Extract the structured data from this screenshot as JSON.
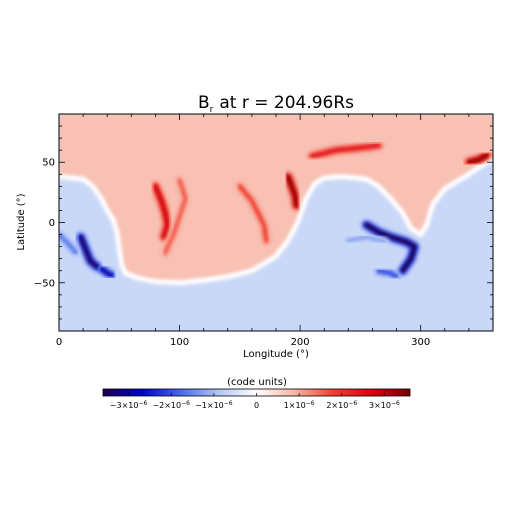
{
  "chart_data": {
    "type": "heatmap",
    "title_main": "B",
    "title_sub": "r",
    "title_rest": "at r = 204.96Rs",
    "xlabel": "Longitude (°)",
    "ylabel": "Latitude (°)",
    "xlim": [
      0,
      360
    ],
    "ylim": [
      -90,
      90
    ],
    "x_ticks": [
      0,
      100,
      200,
      300
    ],
    "y_ticks": [
      -50,
      0,
      50
    ],
    "colorbar": {
      "title": "(code units)",
      "range": [
        -3.6e-06,
        3.6e-06
      ],
      "orientation": "horizontal",
      "colormap": [
        "#1c0050",
        "#0000cc",
        "#4466ee",
        "#b0c4f4",
        "#ffffff",
        "#f7b4a4",
        "#f04030",
        "#dd0010",
        "#7a0000"
      ],
      "tick_values": [
        -3e-06,
        -2e-06,
        -1e-06,
        0,
        1e-06,
        2e-06,
        3e-06
      ],
      "tick_labels": [
        {
          "base": "−3×10",
          "exp": "−6"
        },
        {
          "base": "−2×10",
          "exp": "−6"
        },
        {
          "base": "−1×10",
          "exp": "−6"
        },
        {
          "base": "0",
          "exp": ""
        },
        {
          "base": "1×10",
          "exp": "−6"
        },
        {
          "base": "2×10",
          "exp": "−6"
        },
        {
          "base": "3×10",
          "exp": "−6"
        }
      ]
    },
    "background_levels": {
      "north_positive": 7.5e-07,
      "south_negative": -6e-07,
      "near_sheet": 0.0
    },
    "neutral_line": [
      [
        0,
        38
      ],
      [
        20,
        36
      ],
      [
        28,
        30
      ],
      [
        35,
        20
      ],
      [
        40,
        10
      ],
      [
        45,
        2
      ],
      [
        48,
        -8
      ],
      [
        50,
        -22
      ],
      [
        52,
        -35
      ],
      [
        55,
        -42
      ],
      [
        65,
        -46
      ],
      [
        80,
        -49
      ],
      [
        100,
        -50
      ],
      [
        120,
        -48
      ],
      [
        140,
        -45
      ],
      [
        160,
        -40
      ],
      [
        180,
        -28
      ],
      [
        190,
        -15
      ],
      [
        198,
        0
      ],
      [
        205,
        20
      ],
      [
        212,
        32
      ],
      [
        220,
        37
      ],
      [
        235,
        38
      ],
      [
        255,
        36
      ],
      [
        265,
        30
      ],
      [
        275,
        20
      ],
      [
        285,
        8
      ],
      [
        292,
        -5
      ],
      [
        300,
        -10
      ],
      [
        305,
        -2
      ],
      [
        310,
        15
      ],
      [
        320,
        28
      ],
      [
        330,
        34
      ],
      [
        340,
        40
      ],
      [
        350,
        47
      ],
      [
        360,
        52
      ]
    ],
    "positive_filaments": [
      {
        "points": [
          [
            80,
            30
          ],
          [
            85,
            18
          ],
          [
            88,
            8
          ],
          [
            90,
            -2
          ],
          [
            87,
            -12
          ]
        ],
        "peak": 2.8e-06
      },
      {
        "points": [
          [
            100,
            35
          ],
          [
            105,
            20
          ],
          [
            100,
            5
          ],
          [
            95,
            -10
          ],
          [
            88,
            -25
          ]
        ],
        "peak": 1.6e-06
      },
      {
        "points": [
          [
            150,
            30
          ],
          [
            160,
            18
          ],
          [
            165,
            8
          ],
          [
            170,
            -2
          ],
          [
            172,
            -15
          ]
        ],
        "peak": 1.8e-06
      },
      {
        "points": [
          [
            190,
            38
          ],
          [
            193,
            30
          ],
          [
            196,
            22
          ],
          [
            197,
            14
          ]
        ],
        "peak": 3.4e-06
      },
      {
        "points": [
          [
            210,
            55
          ],
          [
            230,
            60
          ],
          [
            250,
            62
          ],
          [
            265,
            64
          ]
        ],
        "peak": 2.4e-06
      },
      {
        "points": [
          [
            340,
            50
          ],
          [
            348,
            52
          ],
          [
            355,
            56
          ]
        ],
        "peak": 3.4e-06
      }
    ],
    "negative_filaments": [
      {
        "points": [
          [
            18,
            -12
          ],
          [
            22,
            -22
          ],
          [
            26,
            -32
          ],
          [
            32,
            -37
          ]
        ],
        "peak": -3.5e-06
      },
      {
        "points": [
          [
            35,
            -38
          ],
          [
            40,
            -42
          ],
          [
            44,
            -44
          ]
        ],
        "peak": -3e-06
      },
      {
        "points": [
          [
            255,
            -2
          ],
          [
            265,
            -8
          ],
          [
            275,
            -12
          ],
          [
            288,
            -16
          ],
          [
            295,
            -20
          ],
          [
            292,
            -30
          ],
          [
            285,
            -40
          ]
        ],
        "peak": -3.6e-06
      },
      {
        "points": [
          [
            240,
            -15
          ],
          [
            255,
            -12
          ],
          [
            270,
            -16
          ]
        ],
        "peak": -1.2e-06
      },
      {
        "points": [
          [
            0,
            -10
          ],
          [
            8,
            -18
          ],
          [
            14,
            -25
          ]
        ],
        "peak": -1.6e-06
      },
      {
        "points": [
          [
            265,
            -40
          ],
          [
            275,
            -42
          ],
          [
            280,
            -45
          ]
        ],
        "peak": -2e-06
      }
    ]
  }
}
